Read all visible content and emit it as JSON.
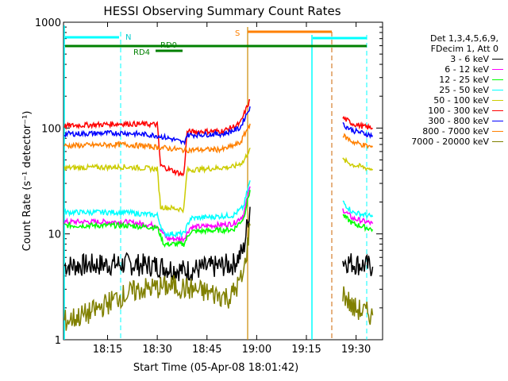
{
  "chart_data": {
    "type": "line",
    "title": "HESSI Observing Summary Count Rates",
    "xlabel": "Start Time (05-Apr-08 18:01:42)",
    "ylabel": "Count Rate (s⁻¹ detector⁻¹)",
    "yscale": "log",
    "ylim": [
      1,
      1000
    ],
    "xlim": [
      "18:01:42",
      "19:38:00"
    ],
    "x_ticks": [
      "18:15",
      "18:30",
      "18:45",
      "19:00",
      "19:15",
      "19:30"
    ],
    "y_ticks": [
      "1",
      "10",
      "100",
      "1000"
    ],
    "legend_header": [
      "Det 1,3,4,5,6,9,",
      "FDecim 1, Att 0"
    ],
    "legend_position": "right",
    "annotations": {
      "N": "N",
      "S": "S",
      "RD0": "RD0",
      "RD4": "RD4"
    },
    "series": [
      {
        "name": "3 - 6 keV",
        "color": "#000000",
        "segments": [
          [
            [
              "18:02",
              5.0
            ],
            [
              "18:20",
              5.2
            ],
            [
              "18:30",
              5.0
            ],
            [
              "18:38",
              4.5
            ],
            [
              "18:46",
              4.8
            ],
            [
              "18:53",
              5.2
            ],
            [
              "18:56",
              7
            ],
            [
              "18:58",
              18
            ]
          ],
          [
            [
              "19:26",
              5.6
            ],
            [
              "19:29",
              5.3
            ],
            [
              "19:33",
              5.0
            ],
            [
              "19:35",
              4.9
            ]
          ]
        ]
      },
      {
        "name": "6 - 12 keV",
        "color": "#ff00ff",
        "segments": [
          [
            [
              "18:02",
              13
            ],
            [
              "18:20",
              13
            ],
            [
              "18:30",
              12
            ],
            [
              "18:33",
              9
            ],
            [
              "18:38",
              9
            ],
            [
              "18:40",
              11.5
            ],
            [
              "18:53",
              12.5
            ],
            [
              "18:56",
              15
            ],
            [
              "18:58",
              28
            ]
          ],
          [
            [
              "19:26",
              17
            ],
            [
              "19:29",
              14
            ],
            [
              "19:33",
              13
            ],
            [
              "19:35",
              12.5
            ]
          ]
        ]
      },
      {
        "name": "12 - 25 keV",
        "color": "#00ff00",
        "segments": [
          [
            [
              "18:02",
              12
            ],
            [
              "18:20",
              12
            ],
            [
              "18:30",
              11.5
            ],
            [
              "18:32",
              8
            ],
            [
              "18:38",
              8
            ],
            [
              "18:40",
              10.5
            ],
            [
              "18:53",
              11
            ],
            [
              "18:56",
              14
            ],
            [
              "18:58",
              26
            ]
          ],
          [
            [
              "19:26",
              15
            ],
            [
              "19:29",
              12.5
            ],
            [
              "19:33",
              11.5
            ],
            [
              "19:35",
              11
            ]
          ]
        ]
      },
      {
        "name": "25 - 50 keV",
        "color": "#00ffff",
        "segments": [
          [
            [
              "18:02",
              16
            ],
            [
              "18:20",
              16
            ],
            [
              "18:30",
              15
            ],
            [
              "18:32",
              10
            ],
            [
              "18:38",
              10
            ],
            [
              "18:40",
              14
            ],
            [
              "18:53",
              15
            ],
            [
              "18:56",
              18
            ],
            [
              "18:58",
              32
            ]
          ],
          [
            [
              "19:26",
              20
            ],
            [
              "19:29",
              16
            ],
            [
              "19:33",
              15
            ],
            [
              "19:35",
              14.5
            ]
          ]
        ]
      },
      {
        "name": "50 - 100 keV",
        "color": "#cccc00",
        "segments": [
          [
            [
              "18:02",
              42
            ],
            [
              "18:20",
              43
            ],
            [
              "18:30",
              41
            ],
            [
              "18:31",
              18
            ],
            [
              "18:38",
              17
            ],
            [
              "18:39",
              40
            ],
            [
              "18:53",
              43
            ],
            [
              "18:56",
              48
            ],
            [
              "18:58",
              65
            ]
          ],
          [
            [
              "19:26",
              50
            ],
            [
              "19:29",
              45
            ],
            [
              "19:33",
              42
            ],
            [
              "19:35",
              41
            ]
          ]
        ]
      },
      {
        "name": "100 - 300 keV",
        "color": "#ff0000",
        "segments": [
          [
            [
              "18:02",
              105
            ],
            [
              "18:20",
              110
            ],
            [
              "18:30",
              108
            ],
            [
              "18:31",
              44
            ],
            [
              "18:38",
              36
            ],
            [
              "18:39",
              92
            ],
            [
              "18:50",
              94
            ],
            [
              "18:55",
              110
            ],
            [
              "18:58",
              185
            ]
          ],
          [
            [
              "19:26",
              125
            ],
            [
              "19:29",
              110
            ],
            [
              "19:33",
              102
            ],
            [
              "19:35",
              100
            ]
          ]
        ]
      },
      {
        "name": "300 - 800 keV",
        "color": "#0000ff",
        "segments": [
          [
            [
              "18:02",
              88
            ],
            [
              "18:20",
              90
            ],
            [
              "18:30",
              85
            ],
            [
              "18:35",
              78
            ],
            [
              "18:38",
              72
            ],
            [
              "18:39",
              86
            ],
            [
              "18:50",
              88
            ],
            [
              "18:55",
              100
            ],
            [
              "18:58",
              160
            ]
          ],
          [
            [
              "19:26",
              108
            ],
            [
              "19:29",
              95
            ],
            [
              "19:33",
              88
            ],
            [
              "19:35",
              85
            ]
          ]
        ]
      },
      {
        "name": "800 - 7000 keV",
        "color": "#ff8000",
        "segments": [
          [
            [
              "18:02",
              68
            ],
            [
              "18:20",
              70
            ],
            [
              "18:30",
              66
            ],
            [
              "18:38",
              62
            ],
            [
              "18:39",
              62
            ],
            [
              "18:50",
              63
            ],
            [
              "18:55",
              72
            ],
            [
              "18:58",
              110
            ]
          ],
          [
            [
              "19:26",
              85
            ],
            [
              "19:29",
              74
            ],
            [
              "19:33",
              68
            ],
            [
              "19:35",
              66
            ]
          ]
        ]
      },
      {
        "name": "7000 - 20000 keV",
        "color": "#808000",
        "segments": [
          [
            [
              "18:02",
              1.5
            ],
            [
              "18:10",
              1.8
            ],
            [
              "18:18",
              2.5
            ],
            [
              "18:25",
              3.0
            ],
            [
              "18:35",
              3.2
            ],
            [
              "18:45",
              2.8
            ],
            [
              "18:52",
              2.5
            ],
            [
              "18:56",
              4
            ],
            [
              "18:58",
              12
            ]
          ],
          [
            [
              "19:26",
              2.8
            ],
            [
              "19:29",
              2.0
            ],
            [
              "19:33",
              1.8
            ],
            [
              "19:35",
              1.7
            ]
          ]
        ]
      }
    ]
  }
}
